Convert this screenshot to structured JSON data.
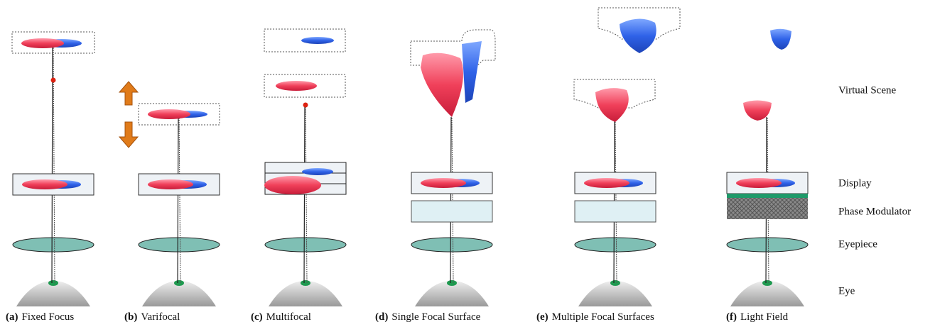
{
  "captions": [
    {
      "tag": "(a)",
      "text": "Fixed Focus"
    },
    {
      "tag": "(b)",
      "text": "Varifocal"
    },
    {
      "tag": "(c)",
      "text": "Multifocal"
    },
    {
      "tag": "(d)",
      "text": "Single Focal Surface"
    },
    {
      "tag": "(e)",
      "text": "Multiple Focal Surfaces"
    },
    {
      "tag": "(f)",
      "text": "Light Field"
    }
  ],
  "row_labels": [
    "Virtual Scene",
    "Display",
    "Phase Modulator",
    "Eyepiece",
    "Eye"
  ]
}
